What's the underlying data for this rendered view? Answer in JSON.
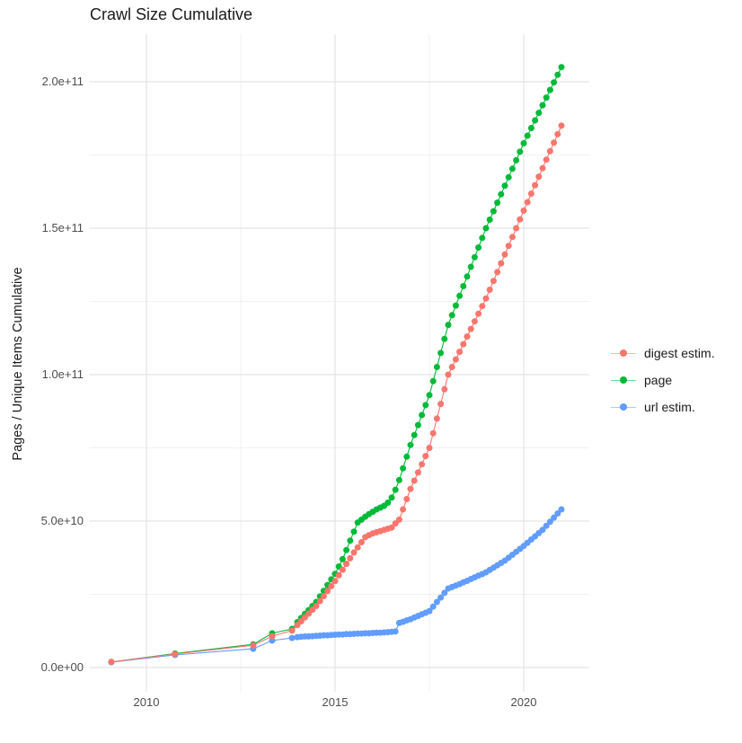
{
  "title": "Crawl Size Cumulative",
  "axes": {
    "y_label": "Pages / Unique Items Cumulative",
    "x_tick_labels": [
      "2010",
      "2015",
      "2020"
    ],
    "y_tick_labels": [
      "0.0e+00",
      "5.0e+10",
      "1.0e+11",
      "1.5e+11",
      "2.0e+11"
    ]
  },
  "legend": {
    "position": "right",
    "items": [
      {
        "label": "digest estim.",
        "color": "#F8766D"
      },
      {
        "label": "page",
        "color": "#00BA38"
      },
      {
        "label": "url estim.",
        "color": "#619CFF"
      }
    ]
  },
  "chart_data": {
    "type": "scatter",
    "title": "Crawl Size Cumulative",
    "xlabel": "",
    "ylabel": "Pages / Unique Items Cumulative",
    "x_unit": "year (decimal)",
    "y_unit": "items, stored as billions (1e9); e.g. 205 = 2.05e+11",
    "xlim": [
      2008.5,
      2021.74
    ],
    "ylim_e9": [
      -8.3,
      216
    ],
    "grid": true,
    "x_major": [
      2010,
      2015,
      2020
    ],
    "x_minor": [
      2012.5,
      2017.5
    ],
    "y_major_e9": [
      0,
      50,
      100,
      150,
      200
    ],
    "y_minor_e9": [
      25,
      75,
      125,
      175
    ],
    "legend_position": "right",
    "draw_order": [
      1,
      2,
      0
    ],
    "series": [
      {
        "name": "digest estim.",
        "color": "#F8766D",
        "points": [
          [
            2009.07,
            1.9
          ],
          [
            2010.76,
            4.6
          ],
          [
            2012.83,
            7.6
          ],
          [
            2013.33,
            10.7
          ],
          [
            2013.86,
            12.6
          ],
          [
            2014.0,
            14.5
          ],
          [
            2014.1,
            15.8
          ],
          [
            2014.2,
            17.1
          ],
          [
            2014.3,
            18.4
          ],
          [
            2014.4,
            19.7
          ],
          [
            2014.5,
            21.0
          ],
          [
            2014.6,
            22.7
          ],
          [
            2014.7,
            24.4
          ],
          [
            2014.8,
            26.1
          ],
          [
            2014.9,
            27.8
          ],
          [
            2015.0,
            29.5
          ],
          [
            2015.1,
            31.5
          ],
          [
            2015.2,
            33.4
          ],
          [
            2015.3,
            35.4
          ],
          [
            2015.4,
            37.3
          ],
          [
            2015.5,
            39.3
          ],
          [
            2015.6,
            41.0
          ],
          [
            2015.7,
            42.8
          ],
          [
            2015.8,
            44.5
          ],
          [
            2015.9,
            45.2
          ],
          [
            2016.0,
            45.8
          ],
          [
            2016.1,
            46.2
          ],
          [
            2016.2,
            46.6
          ],
          [
            2016.3,
            47.0
          ],
          [
            2016.4,
            47.4
          ],
          [
            2016.5,
            47.8
          ],
          [
            2016.6,
            49.2
          ],
          [
            2016.7,
            50.5
          ],
          [
            2016.8,
            54.0
          ],
          [
            2016.9,
            57.5
          ],
          [
            2017.0,
            61.0
          ],
          [
            2017.1,
            63.8
          ],
          [
            2017.2,
            66.6
          ],
          [
            2017.3,
            69.4
          ],
          [
            2017.4,
            72.2
          ],
          [
            2017.5,
            75.0
          ],
          [
            2017.6,
            80.0
          ],
          [
            2017.7,
            85.0
          ],
          [
            2017.8,
            90.0
          ],
          [
            2017.9,
            95.0
          ],
          [
            2018.0,
            100.0
          ],
          [
            2018.1,
            102.6
          ],
          [
            2018.2,
            105.2
          ],
          [
            2018.3,
            107.8
          ],
          [
            2018.4,
            110.4
          ],
          [
            2018.5,
            113.0
          ],
          [
            2018.6,
            115.6
          ],
          [
            2018.7,
            118.2
          ],
          [
            2018.8,
            120.8
          ],
          [
            2018.9,
            123.4
          ],
          [
            2019.0,
            126.0
          ],
          [
            2019.1,
            129.0
          ],
          [
            2019.2,
            132.0
          ],
          [
            2019.3,
            135.0
          ],
          [
            2019.4,
            138.0
          ],
          [
            2019.5,
            141.0
          ],
          [
            2019.6,
            144.0
          ],
          [
            2019.7,
            147.0
          ],
          [
            2019.8,
            150.0
          ],
          [
            2019.9,
            153.0
          ],
          [
            2020.0,
            156.0
          ],
          [
            2020.1,
            158.9
          ],
          [
            2020.2,
            161.8
          ],
          [
            2020.3,
            164.7
          ],
          [
            2020.4,
            167.6
          ],
          [
            2020.5,
            170.5
          ],
          [
            2020.6,
            173.4
          ],
          [
            2020.7,
            176.3
          ],
          [
            2020.8,
            179.2
          ],
          [
            2020.9,
            182.1
          ],
          [
            2021.0,
            185.0
          ]
        ]
      },
      {
        "name": "page",
        "color": "#00BA38",
        "points": [
          [
            2009.07,
            1.9
          ],
          [
            2010.76,
            4.8
          ],
          [
            2012.83,
            7.9
          ],
          [
            2013.33,
            11.7
          ],
          [
            2013.86,
            13.2
          ],
          [
            2014.0,
            15.5
          ],
          [
            2014.1,
            16.9
          ],
          [
            2014.2,
            18.3
          ],
          [
            2014.3,
            19.6
          ],
          [
            2014.4,
            21.0
          ],
          [
            2014.5,
            22.4
          ],
          [
            2014.6,
            24.3
          ],
          [
            2014.7,
            26.2
          ],
          [
            2014.8,
            28.2
          ],
          [
            2014.9,
            30.1
          ],
          [
            2015.0,
            32.0
          ],
          [
            2015.1,
            34.5
          ],
          [
            2015.2,
            37.0
          ],
          [
            2015.3,
            40.1
          ],
          [
            2015.4,
            43.3
          ],
          [
            2015.5,
            46.4
          ],
          [
            2015.6,
            49.5
          ],
          [
            2015.7,
            50.5
          ],
          [
            2015.8,
            51.5
          ],
          [
            2015.9,
            52.4
          ],
          [
            2016.0,
            53.2
          ],
          [
            2016.1,
            54.0
          ],
          [
            2016.2,
            54.6
          ],
          [
            2016.3,
            55.2
          ],
          [
            2016.4,
            56.3
          ],
          [
            2016.5,
            58.0
          ],
          [
            2016.6,
            60.7
          ],
          [
            2016.7,
            64.0
          ],
          [
            2016.8,
            68.0
          ],
          [
            2016.9,
            72.0
          ],
          [
            2017.0,
            76.0
          ],
          [
            2017.1,
            79.4
          ],
          [
            2017.2,
            82.8
          ],
          [
            2017.3,
            86.2
          ],
          [
            2017.4,
            89.6
          ],
          [
            2017.5,
            93.0
          ],
          [
            2017.6,
            97.8
          ],
          [
            2017.7,
            102.6
          ],
          [
            2017.8,
            107.4
          ],
          [
            2017.9,
            112.2
          ],
          [
            2018.0,
            117.0
          ],
          [
            2018.1,
            120.3
          ],
          [
            2018.2,
            123.6
          ],
          [
            2018.3,
            126.9
          ],
          [
            2018.4,
            130.2
          ],
          [
            2018.5,
            133.5
          ],
          [
            2018.6,
            136.8
          ],
          [
            2018.7,
            140.1
          ],
          [
            2018.8,
            143.4
          ],
          [
            2018.9,
            146.7
          ],
          [
            2019.0,
            150.0
          ],
          [
            2019.1,
            152.9
          ],
          [
            2019.2,
            155.8
          ],
          [
            2019.3,
            158.7
          ],
          [
            2019.4,
            161.6
          ],
          [
            2019.5,
            164.5
          ],
          [
            2019.6,
            167.4
          ],
          [
            2019.7,
            170.3
          ],
          [
            2019.8,
            173.2
          ],
          [
            2019.9,
            176.1
          ],
          [
            2020.0,
            179.0
          ],
          [
            2020.1,
            181.6
          ],
          [
            2020.2,
            184.2
          ],
          [
            2020.3,
            186.8
          ],
          [
            2020.4,
            189.4
          ],
          [
            2020.5,
            192.0
          ],
          [
            2020.6,
            194.6
          ],
          [
            2020.7,
            197.2
          ],
          [
            2020.8,
            199.8
          ],
          [
            2020.9,
            202.4
          ],
          [
            2021.0,
            205.0
          ]
        ]
      },
      {
        "name": "url estim.",
        "color": "#619CFF",
        "points": [
          [
            2009.07,
            1.8
          ],
          [
            2010.76,
            4.3
          ],
          [
            2012.83,
            6.4
          ],
          [
            2013.33,
            9.2
          ],
          [
            2013.86,
            10.1
          ],
          [
            2014.0,
            10.4
          ],
          [
            2014.1,
            10.5
          ],
          [
            2014.2,
            10.6
          ],
          [
            2014.3,
            10.6
          ],
          [
            2014.4,
            10.7
          ],
          [
            2014.5,
            10.8
          ],
          [
            2014.6,
            10.9
          ],
          [
            2014.7,
            11.0
          ],
          [
            2014.8,
            11.0
          ],
          [
            2014.9,
            11.1
          ],
          [
            2015.0,
            11.2
          ],
          [
            2015.1,
            11.3
          ],
          [
            2015.2,
            11.3
          ],
          [
            2015.3,
            11.4
          ],
          [
            2015.4,
            11.4
          ],
          [
            2015.5,
            11.5
          ],
          [
            2015.6,
            11.6
          ],
          [
            2015.7,
            11.6
          ],
          [
            2015.8,
            11.7
          ],
          [
            2015.9,
            11.7
          ],
          [
            2016.0,
            11.8
          ],
          [
            2016.1,
            11.9
          ],
          [
            2016.2,
            11.9
          ],
          [
            2016.3,
            12.0
          ],
          [
            2016.4,
            12.1
          ],
          [
            2016.5,
            12.2
          ],
          [
            2016.6,
            12.3
          ],
          [
            2016.7,
            15.2
          ],
          [
            2016.8,
            15.6
          ],
          [
            2016.9,
            16.1
          ],
          [
            2017.0,
            16.5
          ],
          [
            2017.1,
            17.1
          ],
          [
            2017.2,
            17.6
          ],
          [
            2017.3,
            18.2
          ],
          [
            2017.4,
            18.7
          ],
          [
            2017.5,
            19.3
          ],
          [
            2017.6,
            20.8
          ],
          [
            2017.7,
            22.4
          ],
          [
            2017.8,
            23.9
          ],
          [
            2017.9,
            25.5
          ],
          [
            2018.0,
            27.0
          ],
          [
            2018.1,
            27.5
          ],
          [
            2018.2,
            28.0
          ],
          [
            2018.3,
            28.5
          ],
          [
            2018.4,
            29.1
          ],
          [
            2018.5,
            29.6
          ],
          [
            2018.6,
            30.2
          ],
          [
            2018.7,
            30.8
          ],
          [
            2018.8,
            31.4
          ],
          [
            2018.9,
            31.9
          ],
          [
            2019.0,
            32.5
          ],
          [
            2019.1,
            33.3
          ],
          [
            2019.2,
            34.1
          ],
          [
            2019.3,
            34.9
          ],
          [
            2019.4,
            35.7
          ],
          [
            2019.5,
            36.5
          ],
          [
            2019.6,
            37.5
          ],
          [
            2019.7,
            38.5
          ],
          [
            2019.8,
            39.5
          ],
          [
            2019.9,
            40.5
          ],
          [
            2020.0,
            41.5
          ],
          [
            2020.1,
            42.6
          ],
          [
            2020.2,
            43.7
          ],
          [
            2020.3,
            44.8
          ],
          [
            2020.4,
            45.9
          ],
          [
            2020.5,
            47.0
          ],
          [
            2020.6,
            48.4
          ],
          [
            2020.7,
            49.8
          ],
          [
            2020.8,
            51.2
          ],
          [
            2020.9,
            52.6
          ],
          [
            2021.0,
            54.0
          ]
        ]
      }
    ]
  },
  "colors": {
    "grid_major": "#E4E4E4",
    "grid_minor": "#F1F1F1",
    "tick_text": "#4D4D4D",
    "text": "#1A1A1A",
    "background": "#FFFFFF"
  }
}
